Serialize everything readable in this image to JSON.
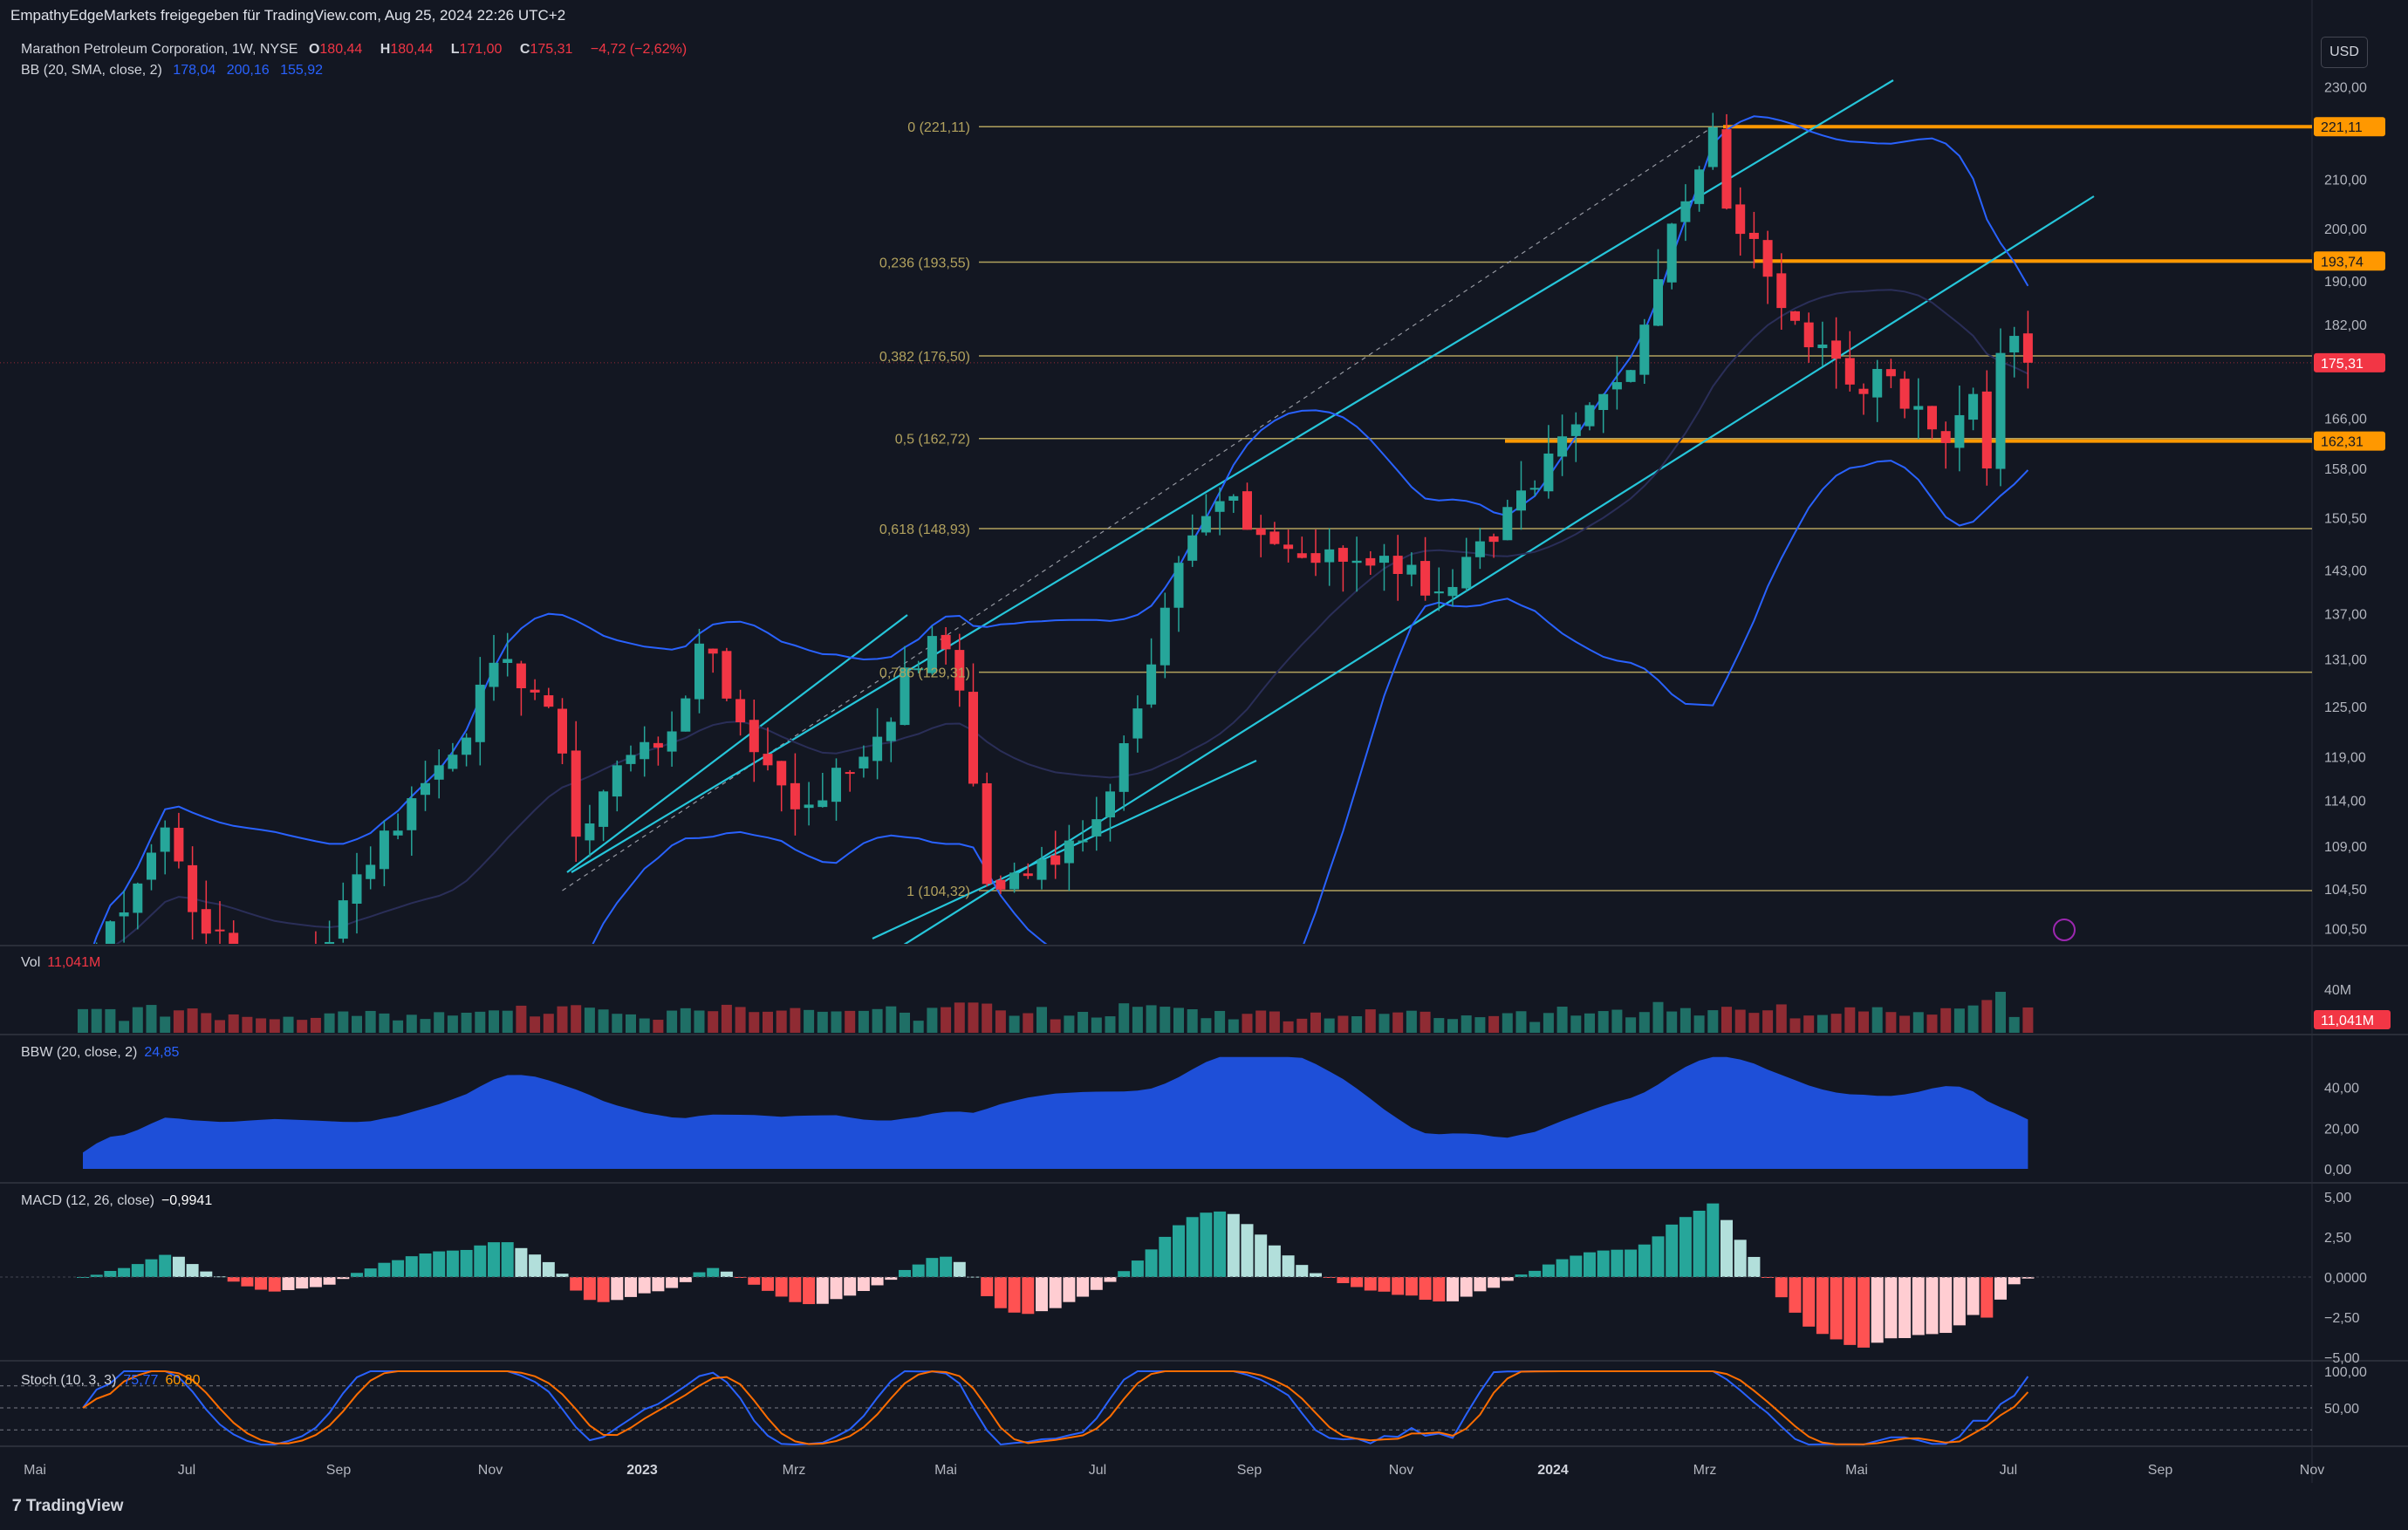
{
  "header": {
    "publisher_line": "EmpathyEdgeMarkets freigegeben für TradingView.com, Aug 25, 2024 22:26 UTC+2",
    "currency_button": "USD",
    "brand": "TradingView"
  },
  "legend": {
    "symbol_line": "Marathon Petroleum Corporation, 1W, NYSE",
    "o_label": "O",
    "o_value": "180,44",
    "h_label": "H",
    "h_value": "180,44",
    "l_label": "L",
    "l_value": "171,00",
    "c_label": "C",
    "c_value": "175,31",
    "change": "−4,72 (−2,62%)",
    "bb_label": "BB (20, SMA, close, 2)",
    "bb_basis": "178,04",
    "bb_upper": "200,16",
    "bb_lower": "155,92",
    "vol_label": "Vol",
    "vol_value": "11,041M",
    "bbw_label": "BBW (20, close, 2)",
    "bbw_value": "24,85",
    "macd_label": "MACD (12, 26, close)",
    "macd_value": "−0,9941",
    "stoch_label": "Stoch (10, 3, 3)",
    "stoch_k": "75,77",
    "stoch_d": "60,80"
  },
  "colors": {
    "background": "#131722",
    "up": "#26a69a",
    "down": "#f23645",
    "fib": "#b2a25e",
    "channel": "#26c6da",
    "bb": "#2962ff",
    "bbw_fill": "#1e4fd8",
    "stoch_k": "#2962ff",
    "stoch_d": "#ff6d00",
    "highlight": "#ff9800"
  },
  "chart_data": {
    "type": "candlestick",
    "timeframe": "1W",
    "price_axis": {
      "ticks": [
        "230,00",
        "221,11",
        "210,00",
        "200,00",
        "193,74",
        "190,00",
        "182,00",
        "175,31",
        "166,00",
        "162,31",
        "158,00",
        "150,50",
        "143,00",
        "137,00",
        "131,00",
        "125,00",
        "119,00",
        "114,00",
        "109,00",
        "104,50",
        "100,50"
      ],
      "log_scale": true,
      "range": [
        99,
        242
      ]
    },
    "time_axis": [
      "Mai",
      "Jul",
      "Sep",
      "Nov",
      "2023",
      "Mrz",
      "Mai",
      "Jul",
      "Sep",
      "Nov",
      "2024",
      "Mrz",
      "Mai",
      "Jul",
      "Sep",
      "Nov"
    ],
    "fib_levels": [
      {
        "label": "0 (221,11)",
        "price": 221.11
      },
      {
        "label": "0,236 (193,55)",
        "price": 193.55
      },
      {
        "label": "0,382 (176,50)",
        "price": 176.5
      },
      {
        "label": "0,5 (162,72)",
        "price": 162.72
      },
      {
        "label": "0,618 (148,93)",
        "price": 148.93
      },
      {
        "label": "0,786 (129,31)",
        "price": 129.31
      },
      {
        "label": "1 (104,32)",
        "price": 104.32
      }
    ],
    "price_labels": [
      {
        "text": "221,11",
        "price": 221.11
      },
      {
        "text": "193,74",
        "price": 193.74
      },
      {
        "text": "175,31",
        "price": 175.31
      },
      {
        "text": "162,31",
        "price": 162.31
      }
    ],
    "anchors": [
      {
        "week": 0,
        "close": 96
      },
      {
        "week": 6,
        "close": 111
      },
      {
        "week": 9,
        "close": 100
      },
      {
        "week": 13,
        "close": 96
      },
      {
        "week": 17,
        "close": 98
      },
      {
        "week": 20,
        "close": 106
      },
      {
        "week": 26,
        "close": 118
      },
      {
        "week": 31,
        "close": 131
      },
      {
        "week": 34,
        "close": 125
      },
      {
        "week": 36,
        "close": 110
      },
      {
        "week": 39,
        "close": 118
      },
      {
        "week": 43,
        "close": 122
      },
      {
        "week": 45,
        "close": 133
      },
      {
        "week": 47,
        "close": 126
      },
      {
        "week": 50,
        "close": 118
      },
      {
        "week": 52,
        "close": 113
      },
      {
        "week": 57,
        "close": 119
      },
      {
        "week": 62,
        "close": 134
      },
      {
        "week": 64,
        "close": 127
      },
      {
        "week": 66,
        "close": 105
      },
      {
        "week": 71,
        "close": 107
      },
      {
        "week": 75,
        "close": 115
      },
      {
        "week": 80,
        "close": 144
      },
      {
        "week": 83,
        "close": 153
      },
      {
        "week": 86,
        "close": 148
      },
      {
        "week": 90,
        "close": 144
      },
      {
        "week": 95,
        "close": 145
      },
      {
        "week": 99,
        "close": 140
      },
      {
        "week": 103,
        "close": 147
      },
      {
        "week": 106,
        "close": 155
      },
      {
        "week": 109,
        "close": 165
      },
      {
        "week": 112,
        "close": 172
      },
      {
        "week": 114,
        "close": 182
      },
      {
        "week": 116,
        "close": 201
      },
      {
        "week": 118,
        "close": 212
      },
      {
        "week": 119,
        "close": 221
      },
      {
        "week": 120,
        "close": 204
      },
      {
        "week": 122,
        "close": 198
      },
      {
        "week": 124,
        "close": 185
      },
      {
        "week": 126,
        "close": 178
      },
      {
        "week": 128,
        "close": 176
      },
      {
        "week": 130,
        "close": 170
      },
      {
        "week": 132,
        "close": 173
      },
      {
        "week": 134,
        "close": 168
      },
      {
        "week": 136,
        "close": 162
      },
      {
        "week": 138,
        "close": 170
      },
      {
        "week": 139,
        "close": 158
      },
      {
        "week": 140,
        "close": 177
      },
      {
        "week": 141,
        "close": 180
      },
      {
        "week": 142,
        "close": 175.31
      }
    ],
    "volume_axis": [
      "40M"
    ],
    "bbw_axis": [
      "40,00",
      "20,00",
      "0,00"
    ],
    "macd_axis": [
      "5,00",
      "2,50",
      "0,0000",
      "−2,50",
      "−5,00"
    ],
    "stoch_axis": [
      "100,00",
      "50,00"
    ]
  }
}
